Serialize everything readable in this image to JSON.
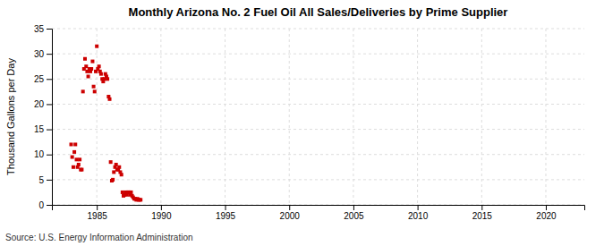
{
  "chart_data": {
    "type": "scatter",
    "title": "Monthly Arizona No. 2 Fuel Oil All Sales/Deliveries by Prime Supplier",
    "ylabel": "Thousand Gallons per Day",
    "source": "Source: U.S. Energy Information Administration",
    "color": "#cc0000",
    "marker": "square",
    "grid": true,
    "xlim": [
      1981.5,
      2023
    ],
    "ylim": [
      0,
      35
    ],
    "xticks": [
      1985,
      1990,
      1995,
      2000,
      2005,
      2010,
      2015,
      2020
    ],
    "yticks": [
      0,
      5,
      10,
      15,
      20,
      25,
      30,
      35
    ],
    "x": [
      1983.0,
      1983.08,
      1983.17,
      1983.25,
      1983.33,
      1983.42,
      1983.5,
      1983.58,
      1983.67,
      1983.75,
      1983.83,
      1983.92,
      1984.0,
      1984.08,
      1984.17,
      1984.25,
      1984.33,
      1984.42,
      1984.5,
      1984.58,
      1984.67,
      1984.75,
      1984.83,
      1984.92,
      1985.0,
      1985.08,
      1985.17,
      1985.25,
      1985.33,
      1985.42,
      1985.5,
      1985.58,
      1985.67,
      1985.75,
      1985.83,
      1985.92,
      1986.0,
      1986.08,
      1986.17,
      1986.25,
      1986.33,
      1986.42,
      1986.5,
      1986.58,
      1986.67,
      1986.75,
      1986.83,
      1986.92,
      1987.0,
      1987.08,
      1987.17,
      1987.25,
      1987.33,
      1987.42,
      1987.5,
      1987.58,
      1987.67,
      1987.75,
      1987.83,
      1987.92,
      1988.0,
      1988.08,
      1988.17,
      1988.25,
      1988.33,
      1988.42
    ],
    "values": [
      12.0,
      9.5,
      7.5,
      10.5,
      12.0,
      9.0,
      7.5,
      8.0,
      9.0,
      7.0,
      7.0,
      22.5,
      27.0,
      29.0,
      27.5,
      26.5,
      25.5,
      27.0,
      26.5,
      27.0,
      28.5,
      23.5,
      22.5,
      26.5,
      31.5,
      27.0,
      27.5,
      26.5,
      26.0,
      25.0,
      24.5,
      25.0,
      26.0,
      25.5,
      25.0,
      21.5,
      21.0,
      8.5,
      4.8,
      5.0,
      6.5,
      7.5,
      8.0,
      7.0,
      7.0,
      7.5,
      6.5,
      6.0,
      2.5,
      1.8,
      2.0,
      2.5,
      2.0,
      2.5,
      2.5,
      2.0,
      2.5,
      1.8,
      1.5,
      1.2,
      1.2,
      1.0,
      1.2,
      1.0,
      1.0,
      1.0
    ]
  }
}
